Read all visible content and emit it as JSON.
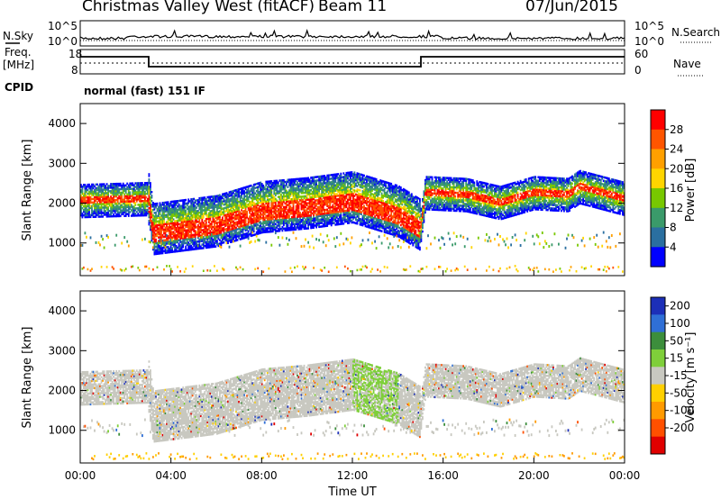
{
  "header": {
    "title": "Christmas Valley West (fitACF)",
    "beam": "Beam 11",
    "date": "07/Jun/2015"
  },
  "status_panels": {
    "nsky_label": "N.Sky",
    "nsky_ticks": [
      "10^5",
      "10^0"
    ],
    "nsearch_label": "N.Search",
    "freq_label": "Freq.",
    "freq_unit": "[MHz]",
    "freq_ticks": [
      "18",
      "8"
    ],
    "nave_label": "Nave",
    "nave_ticks": [
      "60",
      "0"
    ],
    "cpid_label": "CPID",
    "cpid_text": "normal (fast) 151 IF"
  },
  "chart_data": [
    {
      "type": "heatmap",
      "name": "power",
      "ylabel": "Slant Range [km]",
      "xlabel": "",
      "yticks": [
        1000,
        2000,
        3000,
        4000
      ],
      "ylim": [
        180,
        4500
      ],
      "xlim_hours": [
        0,
        24
      ],
      "colorbar": {
        "label": "Power [dB]",
        "ticks": [
          "28",
          "24",
          "20",
          "16",
          "12",
          "8",
          "4"
        ],
        "colors": [
          "#ff0000",
          "#ff5500",
          "#ffa000",
          "#ffd500",
          "#78c800",
          "#3a9a6a",
          "#2a6fa0",
          "#0000ff"
        ]
      },
      "bands": [
        {
          "desc": "main F-region scatter",
          "points": [
            [
              0,
              2050
            ],
            [
              3,
              2100
            ],
            [
              3.2,
              1350
            ],
            [
              6,
              1550
            ],
            [
              8,
              1900
            ],
            [
              10,
              2000
            ],
            [
              12,
              2150
            ],
            [
              14,
              1800
            ],
            [
              15,
              1450
            ],
            [
              15.2,
              2250
            ],
            [
              17,
              2200
            ],
            [
              18.5,
              2000
            ],
            [
              20,
              2250
            ],
            [
              21.5,
              2200
            ],
            [
              22,
              2400
            ],
            [
              24,
              2100
            ]
          ]
        }
      ]
    },
    {
      "type": "heatmap",
      "name": "velocity",
      "ylabel": "Slant Range [km]",
      "xlabel": "Time UT",
      "xticks": [
        "00:00",
        "04:00",
        "08:00",
        "12:00",
        "16:00",
        "20:00",
        "00:00"
      ],
      "yticks": [
        1000,
        2000,
        3000,
        4000
      ],
      "ylim": [
        180,
        4500
      ],
      "xlim_hours": [
        0,
        24
      ],
      "colorbar": {
        "label": "Velocity [m s⁻¹]",
        "ticks": [
          "200",
          "100",
          "50",
          "15",
          "-15",
          "-50",
          "-100",
          "-200"
        ],
        "colors": [
          "#1c2fb8",
          "#2f6fd6",
          "#3c8e3c",
          "#7fcf3a",
          "#c8c8c0",
          "#ffd000",
          "#ff9a00",
          "#ff5000",
          "#e00000"
        ]
      }
    }
  ]
}
